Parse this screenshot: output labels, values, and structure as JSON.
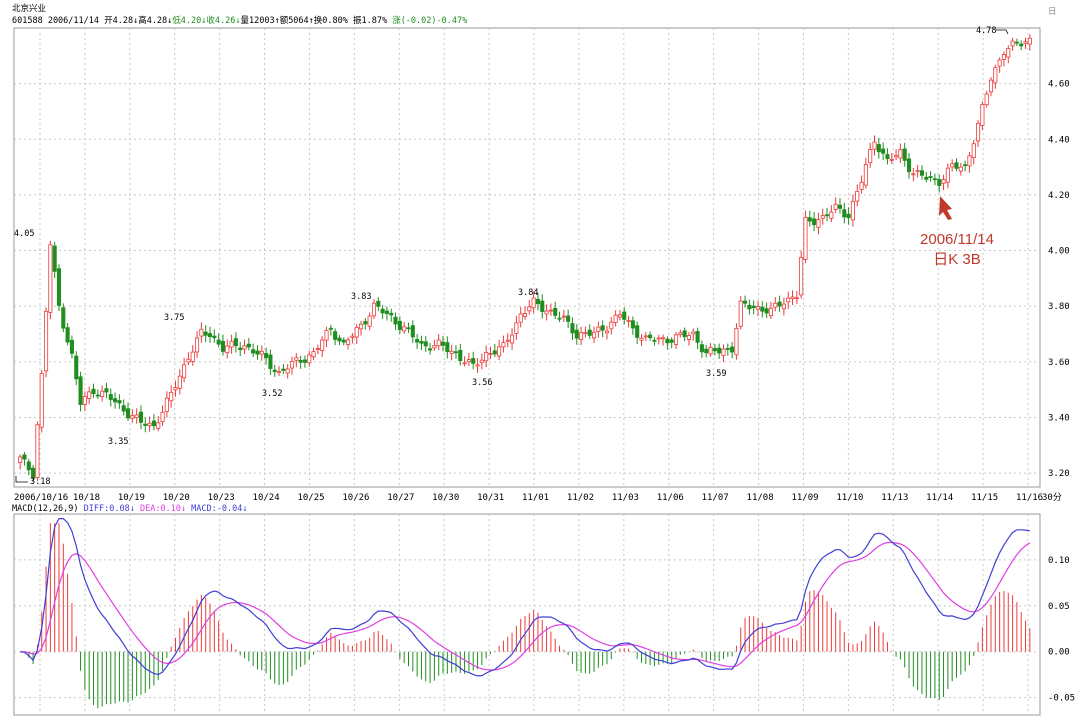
{
  "header": {
    "name": "北京兴业",
    "line": "601588 2006/11/14 开4.28↓高4.28↓",
    "low": "低4.20↓",
    "close": "收4.26↓",
    "rest": "量12003↑额5064↑换0.80% 振1.87% ",
    "change": "涨(-0.02)-0.47%",
    "corner_mark": "日"
  },
  "macd_header": {
    "label": "MACD(12,26,9) ",
    "diff": "DIFF:0.08↓",
    "dea": "DEA:0.10↓",
    "macd": "MACD:-0.04↓"
  },
  "annotation": {
    "date": "2006/11/14",
    "text": "日K 3B"
  },
  "colors": {
    "up": "#ec3b3b",
    "down": "#1f8e1f",
    "diff": "#3f3fd6",
    "dea": "#e23ee2",
    "grid": "#c8c8c8",
    "annotation": "#c0392b"
  },
  "chart_data": [
    {
      "type": "candlestick",
      "title": "",
      "timeframe": "30-minute bars",
      "x_tick_labels": [
        "2006/10/16",
        "10/18",
        "10/19",
        "10/20",
        "10/23",
        "10/24",
        "10/25",
        "10/26",
        "10/27",
        "10/30",
        "10/31",
        "11/01",
        "11/02",
        "11/03",
        "11/06",
        "11/07",
        "11/08",
        "11/09",
        "11/10",
        "11/13",
        "11/14",
        "11/15",
        "11/16"
      ],
      "x_corner_label": "30分",
      "y_ticks": [
        "3.20",
        "3.40",
        "3.60",
        "3.80",
        "4.00",
        "4.20",
        "4.40",
        "4.60"
      ],
      "ylim": [
        3.15,
        4.8
      ],
      "extrema_labels": [
        "3.18",
        "4.05",
        "3.35",
        "3.75",
        "3.52",
        "3.83",
        "3.56",
        "3.84",
        "3.59",
        "4.78"
      ],
      "grid": true
    },
    {
      "type": "line+bar",
      "title": "MACD(12,26,9)",
      "series": [
        {
          "name": "DIFF",
          "style": "line"
        },
        {
          "name": "DEA",
          "style": "line"
        },
        {
          "name": "MACD",
          "style": "histogram"
        }
      ],
      "y_ticks": [
        "0.10",
        "0.05",
        "0.00",
        "-0.05"
      ],
      "ylim": [
        -0.07,
        0.15
      ]
    }
  ]
}
